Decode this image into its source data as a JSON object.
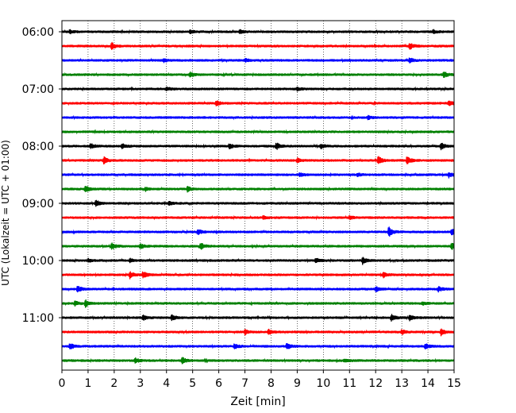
{
  "chart_data": {
    "type": "line",
    "subtype": "helicorder",
    "xlabel": "Zeit  [min]",
    "ylabel": "UTC (Lokalzeit = UTC + 01:00)",
    "xlim": [
      0,
      15
    ],
    "x_ticks": [
      "0",
      "1",
      "2",
      "3",
      "4",
      "5",
      "6",
      "7",
      "8",
      "9",
      "10",
      "11",
      "12",
      "13",
      "14",
      "15"
    ],
    "y_ticks": [
      {
        "label": "06:00",
        "trace": 0
      },
      {
        "label": "07:00",
        "trace": 4
      },
      {
        "label": "08:00",
        "trace": 8
      },
      {
        "label": "09:00",
        "trace": 12
      },
      {
        "label": "10:00",
        "trace": 16
      },
      {
        "label": "11:00",
        "trace": 20
      }
    ],
    "grid": "vertical dotted at each minute",
    "color_cycle": [
      "#000000",
      "#ff0000",
      "#0000ff",
      "#008000"
    ],
    "trace_interval_minutes": 15,
    "series": [
      {
        "start": "06:00",
        "color": "#000000",
        "events": [
          {
            "t": 0.3,
            "a": 2
          },
          {
            "t": 4.9,
            "a": 2
          },
          {
            "t": 6.8,
            "a": 2
          },
          {
            "t": 14.2,
            "a": 2
          }
        ]
      },
      {
        "start": "06:15",
        "color": "#ff0000",
        "events": [
          {
            "t": 1.9,
            "a": 4
          },
          {
            "t": 13.3,
            "a": 4
          }
        ]
      },
      {
        "start": "06:30",
        "color": "#0000ff",
        "events": [
          {
            "t": 3.9,
            "a": 2
          },
          {
            "t": 7.0,
            "a": 2
          },
          {
            "t": 13.3,
            "a": 3
          }
        ]
      },
      {
        "start": "06:45",
        "color": "#008000",
        "events": [
          {
            "t": 4.9,
            "a": 3
          },
          {
            "t": 14.6,
            "a": 4
          }
        ]
      },
      {
        "start": "07:00",
        "color": "#000000",
        "events": [
          {
            "t": 4.0,
            "a": 2
          },
          {
            "t": 9.0,
            "a": 2
          }
        ]
      },
      {
        "start": "07:15",
        "color": "#ff0000",
        "events": [
          {
            "t": 5.9,
            "a": 3
          },
          {
            "t": 14.8,
            "a": 3
          }
        ]
      },
      {
        "start": "07:30",
        "color": "#0000ff",
        "events": [
          {
            "t": 11.7,
            "a": 2
          }
        ]
      },
      {
        "start": "07:45",
        "color": "#008000",
        "events": []
      },
      {
        "start": "08:00",
        "color": "#000000",
        "events": [
          {
            "t": 1.1,
            "a": 3
          },
          {
            "t": 2.3,
            "a": 3
          },
          {
            "t": 6.4,
            "a": 3
          },
          {
            "t": 8.2,
            "a": 4
          },
          {
            "t": 9.9,
            "a": 3
          },
          {
            "t": 14.5,
            "a": 4
          }
        ]
      },
      {
        "start": "08:15",
        "color": "#ff0000",
        "events": [
          {
            "t": 1.6,
            "a": 4
          },
          {
            "t": 9.0,
            "a": 3
          },
          {
            "t": 12.1,
            "a": 5
          },
          {
            "t": 13.2,
            "a": 5
          }
        ]
      },
      {
        "start": "08:30",
        "color": "#0000ff",
        "events": [
          {
            "t": 9.1,
            "a": 2
          },
          {
            "t": 11.3,
            "a": 2
          },
          {
            "t": 14.8,
            "a": 3
          }
        ]
      },
      {
        "start": "08:45",
        "color": "#008000",
        "events": [
          {
            "t": 0.9,
            "a": 4
          },
          {
            "t": 3.2,
            "a": 2
          },
          {
            "t": 4.8,
            "a": 3
          }
        ]
      },
      {
        "start": "09:00",
        "color": "#000000",
        "events": [
          {
            "t": 1.3,
            "a": 4
          },
          {
            "t": 4.1,
            "a": 2
          }
        ]
      },
      {
        "start": "09:15",
        "color": "#ff0000",
        "events": [
          {
            "t": 7.7,
            "a": 2
          },
          {
            "t": 11.0,
            "a": 2
          }
        ]
      },
      {
        "start": "09:30",
        "color": "#0000ff",
        "events": [
          {
            "t": 5.2,
            "a": 3
          },
          {
            "t": 12.5,
            "a": 6
          },
          {
            "t": 14.9,
            "a": 4
          }
        ]
      },
      {
        "start": "09:45",
        "color": "#008000",
        "events": [
          {
            "t": 1.9,
            "a": 4
          },
          {
            "t": 3.0,
            "a": 3
          },
          {
            "t": 5.3,
            "a": 4
          },
          {
            "t": 14.9,
            "a": 4
          }
        ]
      },
      {
        "start": "10:00",
        "color": "#000000",
        "events": [
          {
            "t": 1.0,
            "a": 2
          },
          {
            "t": 2.6,
            "a": 2
          },
          {
            "t": 9.7,
            "a": 3
          },
          {
            "t": 11.5,
            "a": 4
          }
        ]
      },
      {
        "start": "10:15",
        "color": "#ff0000",
        "events": [
          {
            "t": 2.6,
            "a": 4
          },
          {
            "t": 3.1,
            "a": 4
          },
          {
            "t": 12.3,
            "a": 3
          }
        ]
      },
      {
        "start": "10:30",
        "color": "#0000ff",
        "events": [
          {
            "t": 0.6,
            "a": 4
          },
          {
            "t": 12.0,
            "a": 3
          },
          {
            "t": 14.4,
            "a": 3
          }
        ]
      },
      {
        "start": "10:45",
        "color": "#008000",
        "events": [
          {
            "t": 0.5,
            "a": 3
          },
          {
            "t": 0.9,
            "a": 4
          },
          {
            "t": 13.8,
            "a": 2
          }
        ]
      },
      {
        "start": "11:00",
        "color": "#000000",
        "events": [
          {
            "t": 3.1,
            "a": 3
          },
          {
            "t": 4.2,
            "a": 3
          },
          {
            "t": 12.6,
            "a": 4
          },
          {
            "t": 13.3,
            "a": 3
          }
        ]
      },
      {
        "start": "11:15",
        "color": "#ff0000",
        "events": [
          {
            "t": 7.0,
            "a": 3
          },
          {
            "t": 7.9,
            "a": 3
          },
          {
            "t": 13.0,
            "a": 3
          },
          {
            "t": 14.5,
            "a": 4
          }
        ]
      },
      {
        "start": "11:30",
        "color": "#0000ff",
        "events": [
          {
            "t": 0.3,
            "a": 4
          },
          {
            "t": 6.6,
            "a": 3
          },
          {
            "t": 8.6,
            "a": 4
          },
          {
            "t": 13.9,
            "a": 3
          }
        ]
      },
      {
        "start": "11:45",
        "color": "#008000",
        "events": [
          {
            "t": 2.8,
            "a": 3
          },
          {
            "t": 4.6,
            "a": 4
          },
          {
            "t": 10.8,
            "a": 2
          }
        ]
      }
    ]
  }
}
